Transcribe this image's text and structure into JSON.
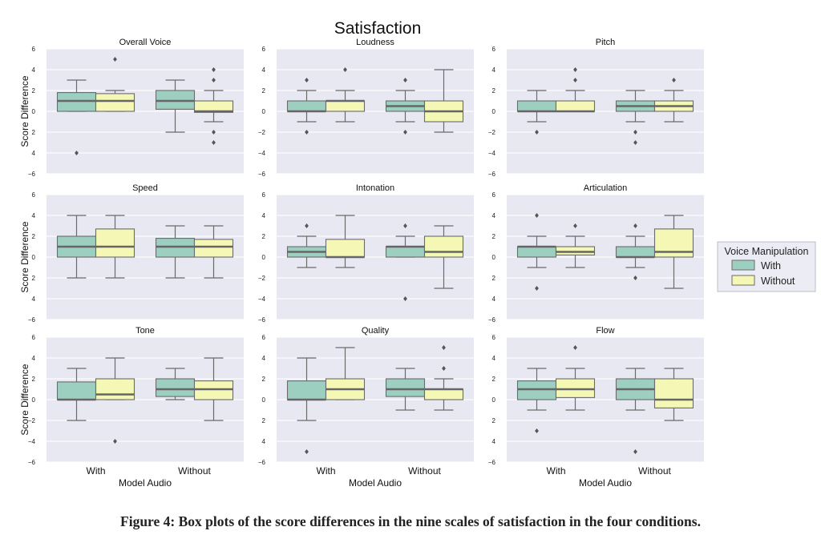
{
  "figure": {
    "title": "Satisfaction",
    "caption": "Figure 4: Box plots of the score differences in the nine scales of satisfaction in the four conditions.",
    "ylabel": "Score Difference",
    "xlabel": "Model Audio",
    "legend": {
      "title": "Voice Manipulation",
      "items": [
        "With",
        "Without"
      ],
      "placement": "right"
    },
    "colors": {
      "With": "#9ccfc0",
      "Without": "#f5f7b4",
      "panel_bg": "#e8e8f3",
      "grid": "#ffffff",
      "line": "#6b6b6b"
    }
  },
  "chart_data": [
    {
      "type": "box",
      "title": "Overall Voice",
      "categories": [
        "With",
        "Without"
      ],
      "ylim": [
        -6,
        6
      ],
      "yticks": [
        "6",
        "4",
        "2",
        "0",
        "2",
        "4",
        "−6"
      ],
      "series": [
        {
          "name": "With",
          "boxes": [
            {
              "whislo": 0,
              "q1": 0,
              "med": 1,
              "q3": 1.8,
              "whishi": 3,
              "fliers": [
                -4
              ]
            },
            {
              "whislo": -2,
              "q1": 0.2,
              "med": 1,
              "q3": 2,
              "whishi": 3,
              "fliers": []
            }
          ]
        },
        {
          "name": "Without",
          "boxes": [
            {
              "whislo": 0,
              "q1": 0,
              "med": 1,
              "q3": 1.7,
              "whishi": 2,
              "fliers": [
                5
              ]
            },
            {
              "whislo": -1,
              "q1": -0.1,
              "med": 0,
              "q3": 1,
              "whishi": 2,
              "fliers": [
                4,
                3,
                -2,
                -3
              ]
            }
          ]
        }
      ]
    },
    {
      "type": "box",
      "title": "Loudness",
      "categories": [
        "With",
        "Without"
      ],
      "ylim": [
        -6,
        6
      ],
      "yticks": [
        "6",
        "4",
        "2",
        "0",
        "−2",
        "−4",
        "−6"
      ],
      "series": [
        {
          "name": "With",
          "boxes": [
            {
              "whislo": -1,
              "q1": 0,
              "med": 0,
              "q3": 1,
              "whishi": 2,
              "fliers": [
                3,
                -2
              ]
            },
            {
              "whislo": -1,
              "q1": 0,
              "med": 0.5,
              "q3": 1,
              "whishi": 2,
              "fliers": [
                3,
                -2
              ]
            }
          ]
        },
        {
          "name": "Without",
          "boxes": [
            {
              "whislo": -1,
              "q1": 0,
              "med": 1,
              "q3": 1,
              "whishi": 2,
              "fliers": [
                4
              ]
            },
            {
              "whislo": -2,
              "q1": -1,
              "med": 0,
              "q3": 1,
              "whishi": 4,
              "fliers": []
            }
          ]
        }
      ]
    },
    {
      "type": "box",
      "title": "Pitch",
      "categories": [
        "With",
        "Without"
      ],
      "ylim": [
        -6,
        6
      ],
      "yticks": [
        "6",
        "4",
        "2",
        "0",
        "−2",
        "−4",
        "−6"
      ],
      "series": [
        {
          "name": "With",
          "boxes": [
            {
              "whislo": -1,
              "q1": 0,
              "med": 0,
              "q3": 1,
              "whishi": 2,
              "fliers": [
                -2
              ]
            },
            {
              "whislo": -1,
              "q1": 0,
              "med": 0.5,
              "q3": 1,
              "whishi": 2,
              "fliers": [
                -2,
                -3
              ]
            }
          ]
        },
        {
          "name": "Without",
          "boxes": [
            {
              "whislo": 0,
              "q1": 0,
              "med": 0,
              "q3": 1,
              "whishi": 2,
              "fliers": [
                4,
                3
              ]
            },
            {
              "whislo": -1,
              "q1": 0,
              "med": 0.5,
              "q3": 1,
              "whishi": 2,
              "fliers": [
                3
              ]
            }
          ]
        }
      ]
    },
    {
      "type": "box",
      "title": "Speed",
      "categories": [
        "With",
        "Without"
      ],
      "ylim": [
        -6,
        6
      ],
      "yticks": [
        "6",
        "4",
        "2",
        "0",
        "2",
        "4",
        "−6"
      ],
      "series": [
        {
          "name": "With",
          "boxes": [
            {
              "whislo": -2,
              "q1": 0,
              "med": 1,
              "q3": 2,
              "whishi": 4,
              "fliers": []
            },
            {
              "whislo": -2,
              "q1": 0,
              "med": 1,
              "q3": 1.8,
              "whishi": 3,
              "fliers": []
            }
          ]
        },
        {
          "name": "Without",
          "boxes": [
            {
              "whislo": -2,
              "q1": 0,
              "med": 1,
              "q3": 2.7,
              "whishi": 4,
              "fliers": []
            },
            {
              "whislo": -2,
              "q1": 0,
              "med": 1,
              "q3": 1.7,
              "whishi": 3,
              "fliers": []
            }
          ]
        }
      ]
    },
    {
      "type": "box",
      "title": "Intonation",
      "categories": [
        "With",
        "Without"
      ],
      "ylim": [
        -6,
        6
      ],
      "yticks": [
        "6",
        "4",
        "2",
        "0",
        "−2",
        "−4",
        "−6"
      ],
      "series": [
        {
          "name": "With",
          "boxes": [
            {
              "whislo": -1,
              "q1": 0,
              "med": 0.5,
              "q3": 1,
              "whishi": 2,
              "fliers": [
                3
              ]
            },
            {
              "whislo": 0,
              "q1": 0,
              "med": 1,
              "q3": 1,
              "whishi": 2,
              "fliers": [
                3,
                -4
              ]
            }
          ]
        },
        {
          "name": "Without",
          "boxes": [
            {
              "whislo": -1,
              "q1": 0,
              "med": 0,
              "q3": 1.7,
              "whishi": 4,
              "fliers": []
            },
            {
              "whislo": -3,
              "q1": 0,
              "med": 0.5,
              "q3": 2,
              "whishi": 3,
              "fliers": []
            }
          ]
        }
      ]
    },
    {
      "type": "box",
      "title": "Articulation",
      "categories": [
        "With",
        "Without"
      ],
      "ylim": [
        -6,
        6
      ],
      "yticks": [
        "6",
        "4",
        "2",
        "0",
        "2",
        "4",
        "−6"
      ],
      "series": [
        {
          "name": "With",
          "boxes": [
            {
              "whislo": -1,
              "q1": 0,
              "med": 1,
              "q3": 1,
              "whishi": 2,
              "fliers": [
                4,
                -3
              ]
            },
            {
              "whislo": -1,
              "q1": 0,
              "med": 0,
              "q3": 1,
              "whishi": 2,
              "fliers": [
                3,
                -2
              ]
            }
          ]
        },
        {
          "name": "Without",
          "boxes": [
            {
              "whislo": -1,
              "q1": 0.2,
              "med": 0.5,
              "q3": 1,
              "whishi": 2,
              "fliers": [
                3
              ]
            },
            {
              "whislo": -3,
              "q1": 0,
              "med": 0.5,
              "q3": 2.7,
              "whishi": 4,
              "fliers": []
            }
          ]
        }
      ]
    },
    {
      "type": "box",
      "title": "Tone",
      "categories": [
        "With",
        "Without"
      ],
      "ylim": [
        -6,
        6
      ],
      "yticks": [
        "6",
        "4",
        "2",
        "0",
        "−2",
        "−4",
        "−6"
      ],
      "series": [
        {
          "name": "With",
          "boxes": [
            {
              "whislo": -2,
              "q1": 0,
              "med": 0,
              "q3": 1.7,
              "whishi": 3,
              "fliers": []
            },
            {
              "whislo": 0,
              "q1": 0.3,
              "med": 1,
              "q3": 2,
              "whishi": 3,
              "fliers": []
            }
          ]
        },
        {
          "name": "Without",
          "boxes": [
            {
              "whislo": 0,
              "q1": 0,
              "med": 0.5,
              "q3": 2,
              "whishi": 4,
              "fliers": [
                -4
              ]
            },
            {
              "whislo": -2,
              "q1": 0,
              "med": 1,
              "q3": 1.8,
              "whishi": 4,
              "fliers": []
            }
          ]
        }
      ]
    },
    {
      "type": "box",
      "title": "Quality",
      "categories": [
        "With",
        "Without"
      ],
      "ylim": [
        -6,
        6
      ],
      "yticks": [
        "6",
        "4",
        "2",
        "0",
        "2",
        "4",
        "−6"
      ],
      "series": [
        {
          "name": "With",
          "boxes": [
            {
              "whislo": -2,
              "q1": 0,
              "med": 0,
              "q3": 1.8,
              "whishi": 4,
              "fliers": [
                -5
              ]
            },
            {
              "whislo": -1,
              "q1": 0.3,
              "med": 1,
              "q3": 2,
              "whishi": 3,
              "fliers": []
            }
          ]
        },
        {
          "name": "Without",
          "boxes": [
            {
              "whislo": 0,
              "q1": 0,
              "med": 1,
              "q3": 2,
              "whishi": 5,
              "fliers": []
            },
            {
              "whislo": -1,
              "q1": 0,
              "med": 1,
              "q3": 1,
              "whishi": 2,
              "fliers": [
                5,
                3
              ]
            }
          ]
        }
      ]
    },
    {
      "type": "box",
      "title": "Flow",
      "categories": [
        "With",
        "Without"
      ],
      "ylim": [
        -6,
        6
      ],
      "yticks": [
        "6",
        "4",
        "2",
        "0",
        "2",
        "4",
        "−6"
      ],
      "series": [
        {
          "name": "With",
          "boxes": [
            {
              "whislo": -1,
              "q1": 0,
              "med": 1,
              "q3": 1.8,
              "whishi": 3,
              "fliers": [
                -3
              ]
            },
            {
              "whislo": -1,
              "q1": 0,
              "med": 1,
              "q3": 2,
              "whishi": 3,
              "fliers": [
                -5
              ]
            }
          ]
        },
        {
          "name": "Without",
          "boxes": [
            {
              "whislo": -1,
              "q1": 0.2,
              "med": 1,
              "q3": 2,
              "whishi": 3,
              "fliers": [
                5
              ]
            },
            {
              "whislo": -2,
              "q1": -0.8,
              "med": 0,
              "q3": 2,
              "whishi": 3,
              "fliers": []
            }
          ]
        }
      ]
    }
  ]
}
